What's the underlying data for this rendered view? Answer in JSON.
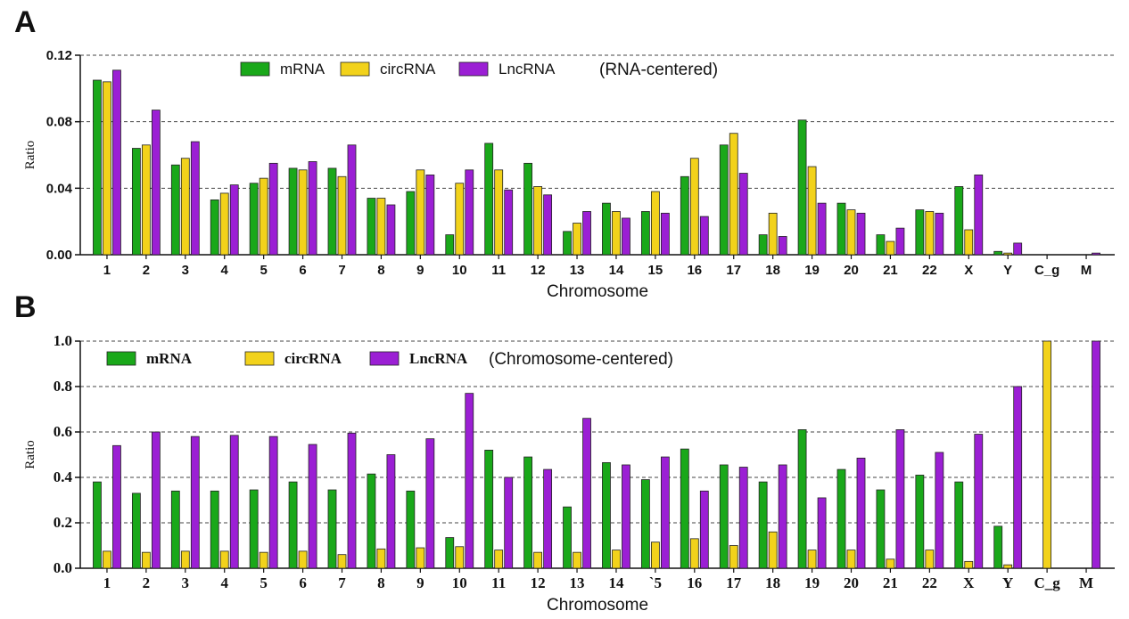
{
  "chart_data": [
    {
      "panel": "A",
      "type": "bar",
      "note": "(RNA-centered)",
      "xlabel": "Chromosome",
      "ylabel": "Ratio",
      "ylim": [
        0,
        0.12
      ],
      "yticks": [
        "0.00",
        "0.04",
        "0.08",
        "0.12"
      ],
      "grid": "horizontal dashed",
      "legend": "top-center",
      "categories": [
        "1",
        "2",
        "3",
        "4",
        "5",
        "6",
        "7",
        "8",
        "9",
        "10",
        "11",
        "12",
        "13",
        "14",
        "15",
        "16",
        "17",
        "18",
        "19",
        "20",
        "21",
        "22",
        "X",
        "Y",
        "C_g",
        "M"
      ],
      "series": [
        {
          "name": "mRNA",
          "color": "#1aa81a",
          "values": [
            0.105,
            0.064,
            0.054,
            0.033,
            0.043,
            0.052,
            0.052,
            0.034,
            0.038,
            0.012,
            0.067,
            0.055,
            0.014,
            0.031,
            0.026,
            0.047,
            0.066,
            0.012,
            0.081,
            0.031,
            0.012,
            0.027,
            0.041,
            0.002,
            0,
            0
          ]
        },
        {
          "name": "circRNA",
          "color": "#f2d21b",
          "values": [
            0.104,
            0.066,
            0.058,
            0.037,
            0.046,
            0.051,
            0.047,
            0.034,
            0.051,
            0.043,
            0.051,
            0.041,
            0.019,
            0.026,
            0.038,
            0.058,
            0.073,
            0.025,
            0.053,
            0.027,
            0.008,
            0.026,
            0.015,
            0.001,
            0,
            0
          ]
        },
        {
          "name": "LncRNA",
          "color": "#9b1fd4",
          "values": [
            0.111,
            0.087,
            0.068,
            0.042,
            0.055,
            0.056,
            0.066,
            0.03,
            0.048,
            0.051,
            0.039,
            0.036,
            0.026,
            0.022,
            0.025,
            0.023,
            0.049,
            0.011,
            0.031,
            0.025,
            0.016,
            0.025,
            0.048,
            0.007,
            0,
            0.001
          ]
        }
      ]
    },
    {
      "panel": "B",
      "type": "bar",
      "note": "(Chromosome-centered)",
      "xlabel": "Chromosome",
      "ylabel": "Ratio",
      "ylim": [
        0,
        1.0
      ],
      "yticks": [
        "0.0",
        "0.2",
        "0.4",
        "0.6",
        "0.8",
        "1.0"
      ],
      "grid": "horizontal dashed",
      "legend": "top-left",
      "categories": [
        "1",
        "2",
        "3",
        "4",
        "5",
        "6",
        "7",
        "8",
        "9",
        "10",
        "11",
        "12",
        "13",
        "14",
        "`5",
        "16",
        "17",
        "18",
        "19",
        "20",
        "21",
        "22",
        "X",
        "Y",
        "C_g",
        "M"
      ],
      "series": [
        {
          "name": "mRNA",
          "color": "#1aa81a",
          "values": [
            0.38,
            0.33,
            0.34,
            0.34,
            0.345,
            0.38,
            0.345,
            0.415,
            0.34,
            0.135,
            0.52,
            0.49,
            0.27,
            0.465,
            0.39,
            0.525,
            0.455,
            0.38,
            0.61,
            0.435,
            0.345,
            0.41,
            0.38,
            0.185,
            0,
            0
          ]
        },
        {
          "name": "circRNA",
          "color": "#f2d21b",
          "values": [
            0.075,
            0.07,
            0.075,
            0.075,
            0.07,
            0.075,
            0.06,
            0.085,
            0.09,
            0.095,
            0.08,
            0.07,
            0.07,
            0.08,
            0.115,
            0.13,
            0.1,
            0.16,
            0.08,
            0.08,
            0.04,
            0.08,
            0.03,
            0.015,
            1.0,
            0
          ]
        },
        {
          "name": "LncRNA",
          "color": "#9b1fd4",
          "values": [
            0.54,
            0.6,
            0.58,
            0.585,
            0.58,
            0.545,
            0.595,
            0.5,
            0.57,
            0.77,
            0.4,
            0.435,
            0.66,
            0.455,
            0.49,
            0.34,
            0.445,
            0.455,
            0.31,
            0.485,
            0.61,
            0.51,
            0.59,
            0.8,
            0,
            1.0
          ]
        }
      ]
    }
  ]
}
